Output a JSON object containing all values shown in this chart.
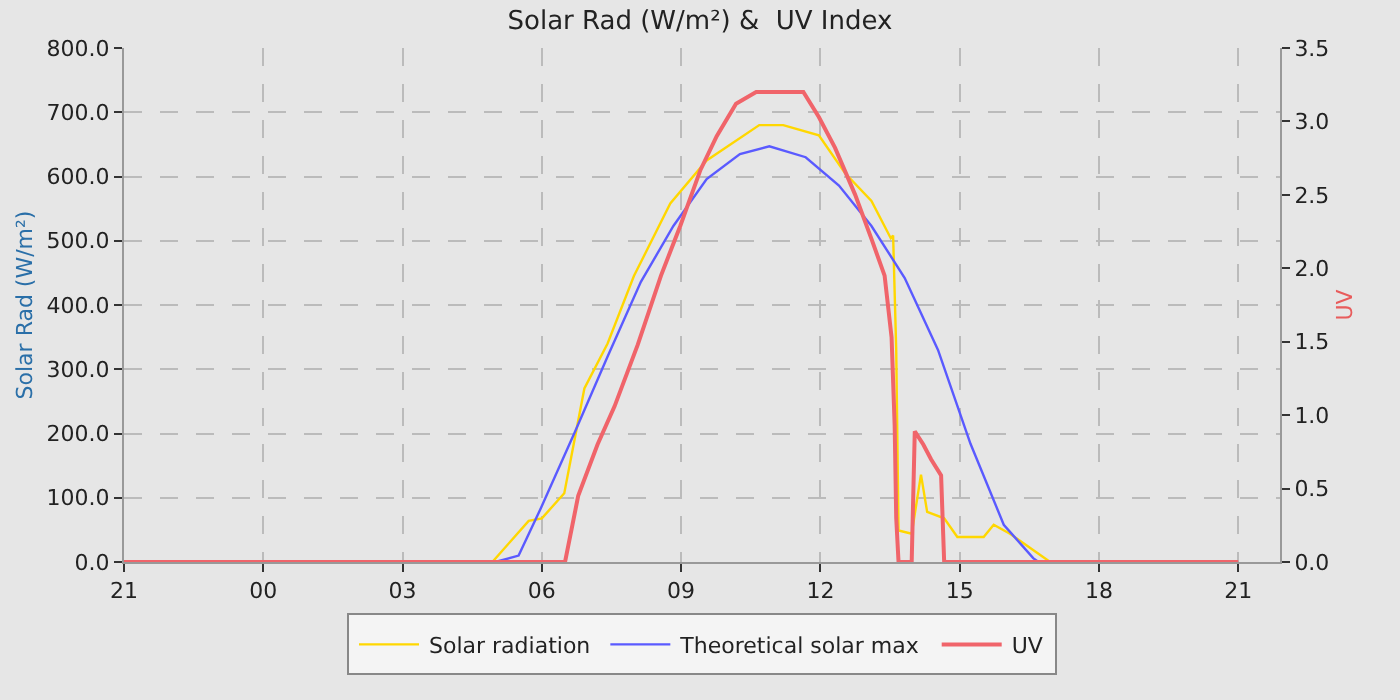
{
  "chart_data": {
    "type": "line",
    "title": "Solar Rad (W/m²) &  UV Index",
    "ylabel": "Solar Rad (W/m²)",
    "y2label": "UV",
    "xlim": [
      "2000-01-01T21:00",
      "2000-01-02T21:54"
    ],
    "xticks": [
      {
        "value": "2000-01-01T21:00",
        "label": "21"
      },
      {
        "value": "2000-01-02T00:00",
        "label": "00"
      },
      {
        "value": "2000-01-02T03:00",
        "label": "03"
      },
      {
        "value": "2000-01-02T06:00",
        "label": "06"
      },
      {
        "value": "2000-01-02T09:00",
        "label": "09"
      },
      {
        "value": "2000-01-02T12:00",
        "label": "12"
      },
      {
        "value": "2000-01-02T15:00",
        "label": "15"
      },
      {
        "value": "2000-01-02T18:00",
        "label": "18"
      },
      {
        "value": "2000-01-02T21:00",
        "label": "21"
      }
    ],
    "ylim": [
      0,
      800
    ],
    "yticks": [
      {
        "value": 0,
        "label": "0.0"
      },
      {
        "value": 100,
        "label": "100.0"
      },
      {
        "value": 200,
        "label": "200.0"
      },
      {
        "value": 300,
        "label": "300.0"
      },
      {
        "value": 400,
        "label": "400.0"
      },
      {
        "value": 500,
        "label": "500.0"
      },
      {
        "value": 600,
        "label": "600.0"
      },
      {
        "value": 700,
        "label": "700.0"
      },
      {
        "value": 800,
        "label": "800.0"
      }
    ],
    "y2lim": [
      0,
      3.5
    ],
    "y2ticks": [
      {
        "value": 0,
        "label": "0.0"
      },
      {
        "value": 0.5,
        "label": "0.5"
      },
      {
        "value": 1,
        "label": "1.0"
      },
      {
        "value": 1.5,
        "label": "1.5"
      },
      {
        "value": 2,
        "label": "2.0"
      },
      {
        "value": 2.5,
        "label": "2.5"
      },
      {
        "value": 3,
        "label": "3.0"
      },
      {
        "value": 3.5,
        "label": "3.5"
      }
    ],
    "grid": true,
    "legend": "bottom",
    "marker": "none",
    "line_style": "solid",
    "series": [
      {
        "name": "Solar radiation",
        "color": "#ffd700",
        "x": [
          "2000-01-01T21:00",
          "2000-01-02T04:56",
          "2000-01-02T05:43",
          "2000-01-02T06:00",
          "2000-01-02T06:29",
          "2000-01-02T06:55",
          "2000-01-02T07:25",
          "2000-01-02T07:59",
          "2000-01-02T08:46",
          "2000-01-02T09:33",
          "2000-01-02T10:41",
          "2000-01-02T11:12",
          "2000-01-02T11:58",
          "2000-01-02T12:32",
          "2000-01-02T13:06",
          "2000-01-02T13:31",
          "2000-01-02T13:34",
          "2000-01-02T13:38",
          "2000-01-02T13:41",
          "2000-01-02T13:58",
          "2000-01-02T14:10",
          "2000-01-02T14:18",
          "2000-01-02T14:40",
          "2000-01-02T14:57",
          "2000-01-02T15:31",
          "2000-01-02T15:44",
          "2000-01-02T16:05",
          "2000-01-02T16:57",
          "2000-01-02T21:00"
        ],
        "values": [
          0,
          0,
          64,
          68,
          107,
          270,
          340,
          445,
          558,
          625,
          680,
          680,
          664,
          605,
          562,
          504,
          508,
          330,
          49,
          44,
          136,
          78,
          68,
          39,
          39,
          58,
          44,
          0,
          0
        ]
      },
      {
        "name": "Theoretical solar max",
        "color": "#5a5aff",
        "x": [
          "2000-01-01T21:00",
          "2000-01-02T05:00",
          "2000-01-02T05:30",
          "2000-01-02T06:00",
          "2000-01-02T06:43",
          "2000-01-02T07:25",
          "2000-01-02T08:08",
          "2000-01-02T08:50",
          "2000-01-02T09:33",
          "2000-01-02T10:16",
          "2000-01-02T10:54",
          "2000-01-02T11:41",
          "2000-01-02T12:24",
          "2000-01-02T13:06",
          "2000-01-02T13:49",
          "2000-01-02T14:32",
          "2000-01-02T15:14",
          "2000-01-02T15:57",
          "2000-01-02T16:35",
          "2000-01-02T16:42",
          "2000-01-02T21:00"
        ],
        "values": [
          0,
          0,
          10,
          87,
          203,
          320,
          436,
          523,
          596,
          635,
          647,
          630,
          586,
          523,
          442,
          330,
          184,
          58,
          6,
          0,
          0
        ]
      },
      {
        "name": "UV",
        "color": "#f0646a",
        "axis": "y2",
        "x": [
          "2000-01-01T21:00",
          "2000-01-02T06:30",
          "2000-01-02T06:47",
          "2000-01-02T07:12",
          "2000-01-02T07:34",
          "2000-01-02T08:04",
          "2000-01-02T08:34",
          "2000-01-02T08:59",
          "2000-01-02T09:25",
          "2000-01-02T09:46",
          "2000-01-02T10:11",
          "2000-01-02T10:37",
          "2000-01-02T11:38",
          "2000-01-02T11:58",
          "2000-01-02T12:19",
          "2000-01-02T12:45",
          "2000-01-02T13:06",
          "2000-01-02T13:23",
          "2000-01-02T13:32",
          "2000-01-02T13:36",
          "2000-01-02T13:38",
          "2000-01-02T13:41",
          "2000-01-02T13:58",
          "2000-01-02T14:02",
          "2000-01-02T14:13",
          "2000-01-02T14:23",
          "2000-01-02T14:36",
          "2000-01-02T14:40",
          "2000-01-02T21:00"
        ],
        "values": [
          0,
          0,
          0.45,
          0.8,
          1.06,
          1.48,
          1.95,
          2.29,
          2.67,
          2.9,
          3.12,
          3.2,
          3.2,
          3.03,
          2.82,
          2.5,
          2.2,
          1.95,
          1.53,
          0.93,
          0.3,
          0,
          0,
          0.89,
          0.8,
          0.7,
          0.59,
          0,
          0
        ]
      }
    ]
  }
}
